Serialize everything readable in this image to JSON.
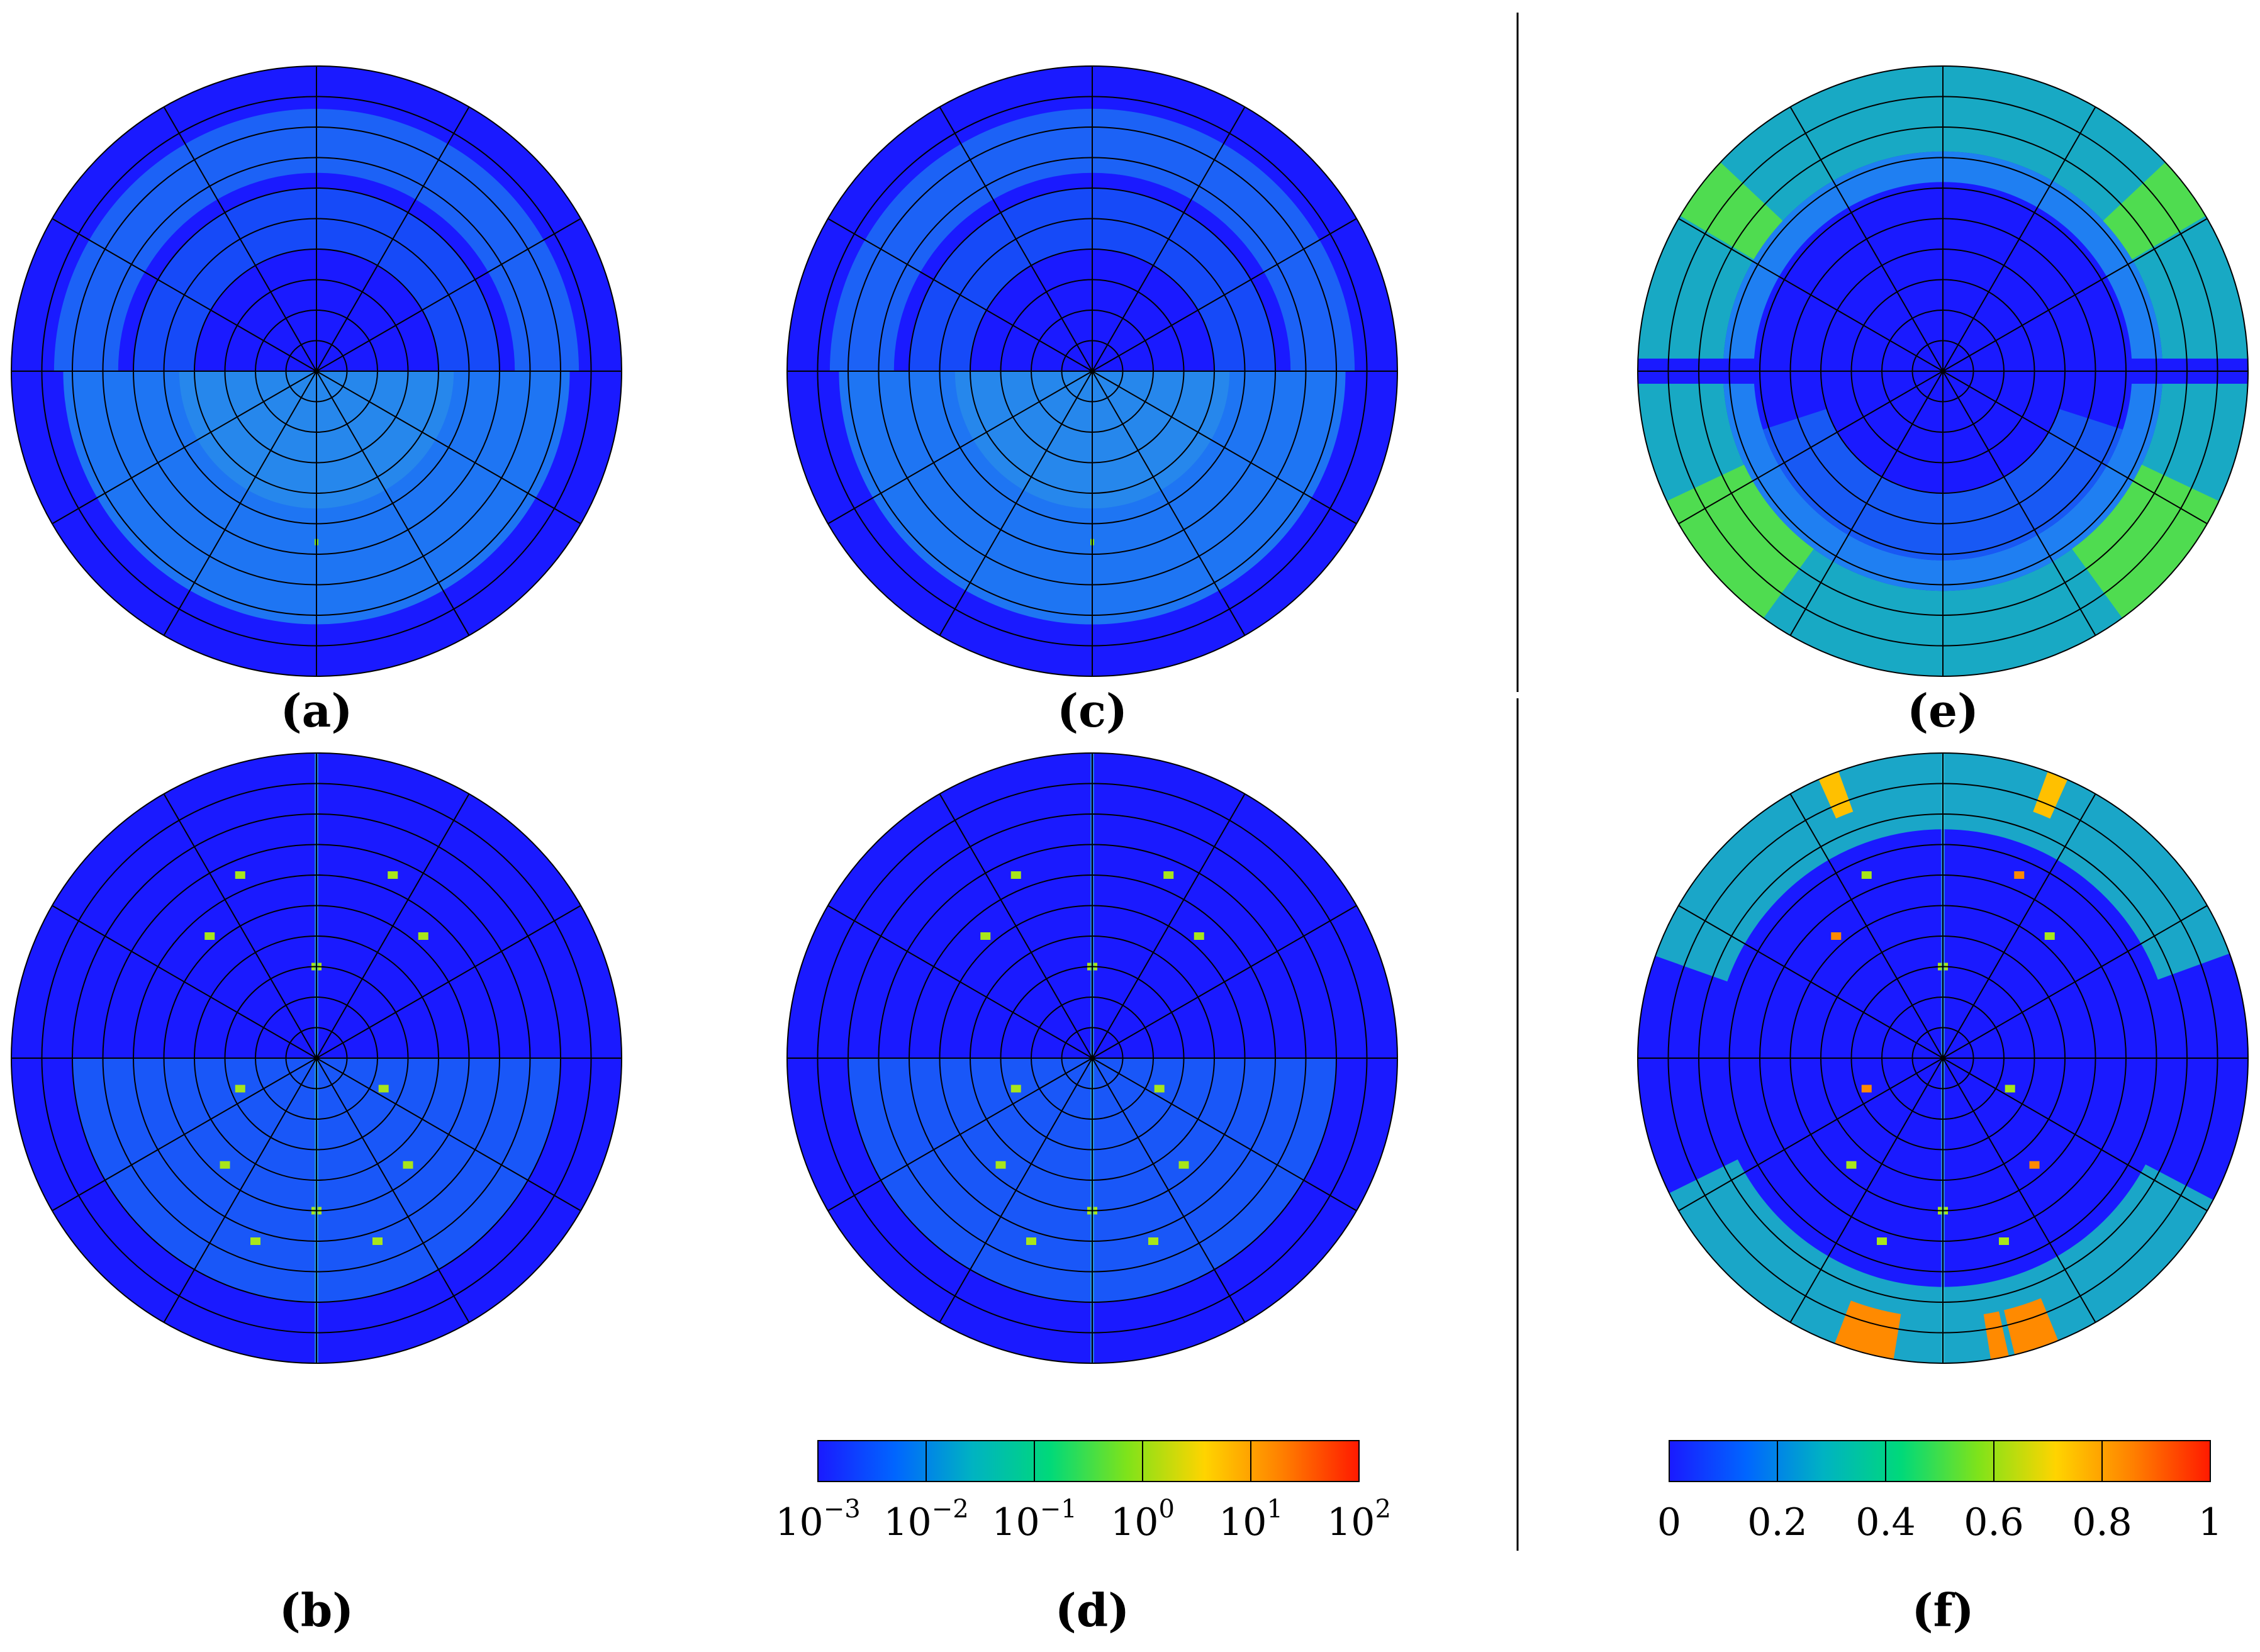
{
  "panels": [
    {
      "label": "(a)",
      "letter": "a",
      "scale": "log",
      "pattern": "hemi"
    },
    {
      "label": "(c)",
      "letter": "c",
      "scale": "log",
      "pattern": "hemi"
    },
    {
      "label": "(e)",
      "letter": "e",
      "scale": "linear",
      "pattern": "rings"
    },
    {
      "label": "(b)",
      "letter": "b",
      "scale": "log",
      "pattern": "spots"
    },
    {
      "label": "(d)",
      "letter": "d",
      "scale": "log",
      "pattern": "spots"
    },
    {
      "label": "(f)",
      "letter": "f",
      "scale": "linear",
      "pattern": "spots_strong"
    }
  ],
  "colorbars": [
    {
      "scale": "log",
      "ticks": [
        {
          "base": "10",
          "exp": "−3"
        },
        {
          "base": "10",
          "exp": "−2"
        },
        {
          "base": "10",
          "exp": "−1"
        },
        {
          "base": "10",
          "exp": "0"
        },
        {
          "base": "10",
          "exp": "1"
        },
        {
          "base": "10",
          "exp": "2"
        }
      ]
    },
    {
      "scale": "linear",
      "ticks": [
        "0",
        "0.2",
        "0.4",
        "0.6",
        "0.8",
        "1"
      ]
    }
  ],
  "chart_data": {
    "type": "heatmap",
    "projection": "polar",
    "grid": {
      "rings": 10,
      "spokes": 12
    },
    "colormap": [
      "#1a1aff",
      "#0066ff",
      "#00b3c2",
      "#00d97a",
      "#7fe31a",
      "#ffd400",
      "#ff8000",
      "#ff1a00"
    ],
    "panels": [
      {
        "id": "a",
        "color_scale": "log",
        "range": [
          "10^-3",
          "10^2"
        ],
        "ticks": [
          "10^-3",
          "10^-2",
          "10^-1",
          "10^0",
          "10^1",
          "10^2"
        ]
      },
      {
        "id": "c",
        "color_scale": "log",
        "range": [
          "10^-3",
          "10^2"
        ],
        "ticks": [
          "10^-3",
          "10^-2",
          "10^-1",
          "10^0",
          "10^1",
          "10^2"
        ]
      },
      {
        "id": "b",
        "color_scale": "log",
        "range": [
          "10^-3",
          "10^2"
        ],
        "ticks": [
          "10^-3",
          "10^-2",
          "10^-1",
          "10^0",
          "10^1",
          "10^2"
        ]
      },
      {
        "id": "d",
        "color_scale": "log",
        "range": [
          "10^-3",
          "10^2"
        ],
        "ticks": [
          "10^-3",
          "10^-2",
          "10^-1",
          "10^0",
          "10^1",
          "10^2"
        ]
      },
      {
        "id": "e",
        "color_scale": "linear",
        "range": [
          0,
          1
        ],
        "ticks": [
          0,
          0.2,
          0.4,
          0.6,
          0.8,
          1
        ]
      },
      {
        "id": "f",
        "color_scale": "linear",
        "range": [
          0,
          1
        ],
        "ticks": [
          0,
          0.2,
          0.4,
          0.6,
          0.8,
          1
        ]
      }
    ]
  }
}
